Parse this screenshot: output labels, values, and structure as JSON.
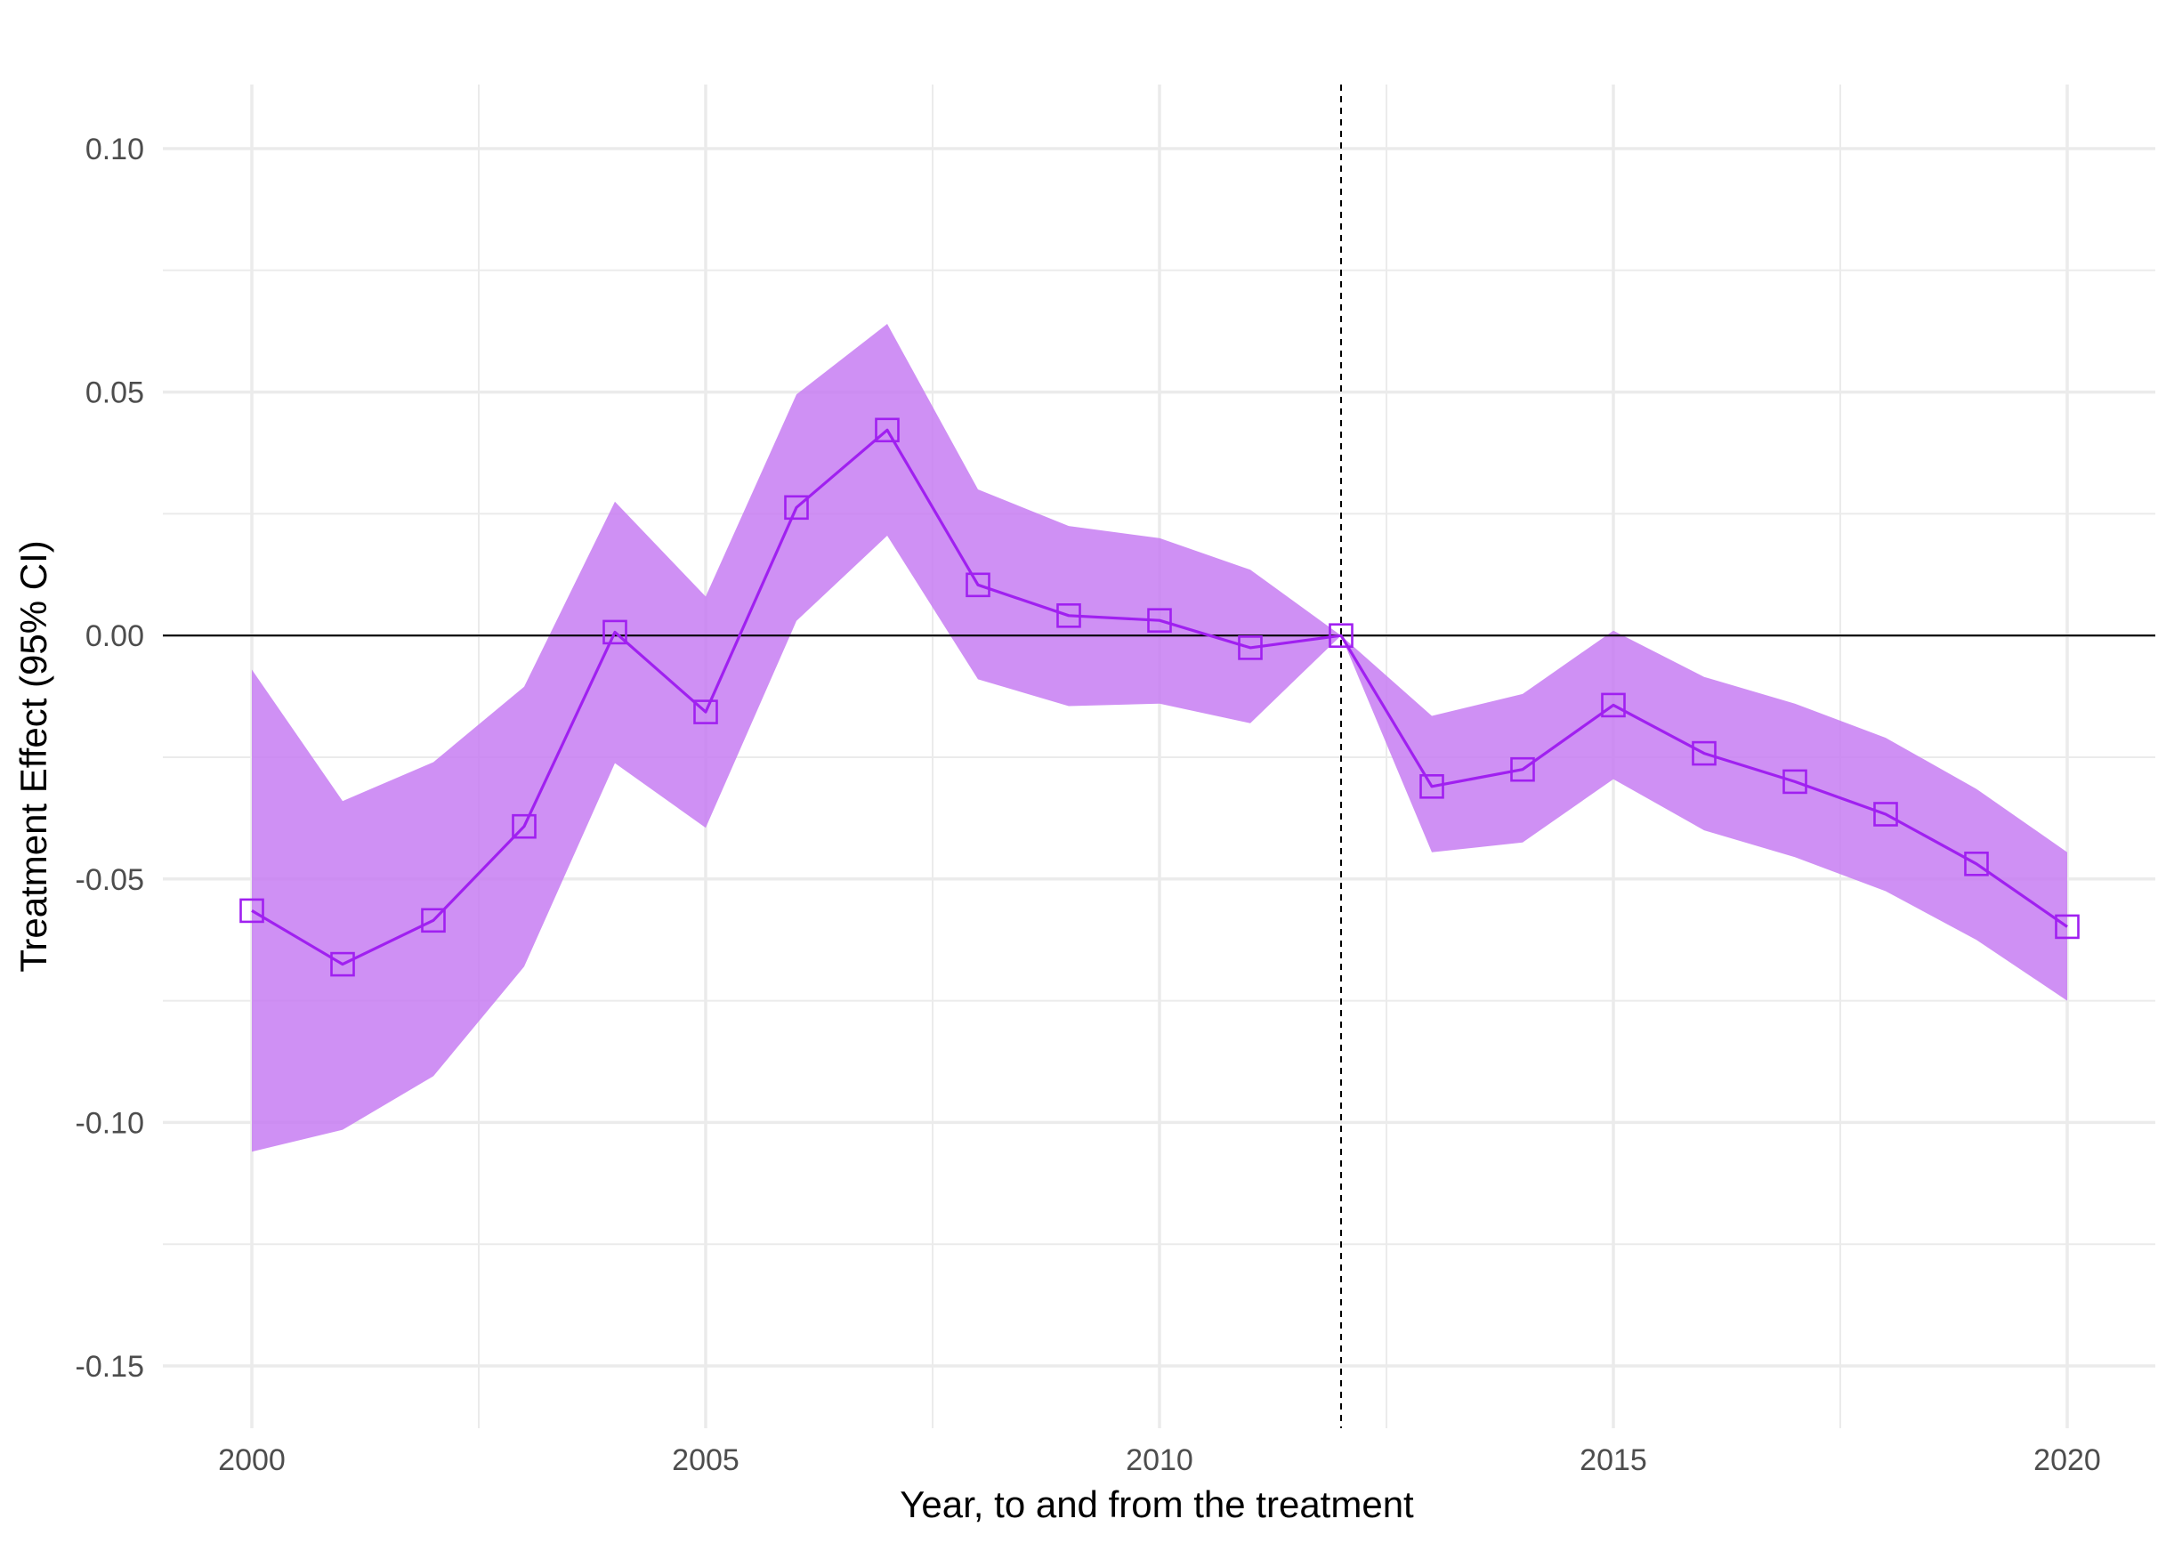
{
  "chart_data": {
    "type": "line",
    "title": "",
    "xlabel": "Year, to and from the treatment",
    "ylabel": "Treatment Effect (95% CI)",
    "xlim": [
      1999,
      2020
    ],
    "ylim": [
      -0.163,
      0.113
    ],
    "x_ticks": [
      2000,
      2005,
      2010,
      2015,
      2020
    ],
    "y_ticks": [
      0.1,
      0.05,
      0.0,
      -0.05,
      -0.1,
      -0.15
    ],
    "y_tick_labels": [
      "0.10",
      "0.05",
      "0.00",
      "-0.05",
      "-0.10",
      "-0.15"
    ],
    "x_tick_labels": [
      "2000",
      "2005",
      "2010",
      "2015",
      "2020"
    ],
    "grid": true,
    "reference_hline": 0,
    "reference_vline": 2012,
    "series": [
      {
        "x": [
          2000,
          2001,
          2002,
          2003,
          2004,
          2005,
          2006,
          2007,
          2008,
          2009,
          2010,
          2011,
          2012,
          2013,
          2014,
          2015,
          2016,
          2017,
          2018,
          2019,
          2020
        ],
        "values": [
          -0.0565,
          -0.0675,
          -0.0585,
          -0.0392,
          0.0007,
          -0.0157,
          0.0263,
          0.0422,
          0.0104,
          0.0041,
          0.0031,
          -0.0025,
          0.0,
          -0.031,
          -0.0275,
          -0.0143,
          -0.0242,
          -0.03,
          -0.0367,
          -0.0469,
          -0.0598
        ],
        "ci_lower": [
          -0.106,
          -0.1015,
          -0.0905,
          -0.068,
          -0.0262,
          -0.0395,
          0.003,
          0.0205,
          -0.009,
          -0.0145,
          -0.014,
          -0.018,
          0.0,
          -0.0445,
          -0.0425,
          -0.0295,
          -0.04,
          -0.0455,
          -0.0525,
          -0.0625,
          -0.075
        ],
        "ci_upper": [
          -0.007,
          -0.034,
          -0.026,
          -0.0105,
          0.0275,
          0.008,
          0.0495,
          0.064,
          0.03,
          0.0225,
          0.02,
          0.0135,
          0.0,
          -0.0165,
          -0.012,
          0.001,
          -0.0085,
          -0.014,
          -0.021,
          -0.0315,
          -0.0445
        ]
      }
    ],
    "colors": {
      "line": "#a020f0",
      "band": "#c77cf2",
      "grid": "#ebebeb",
      "reference": "#000000"
    }
  }
}
